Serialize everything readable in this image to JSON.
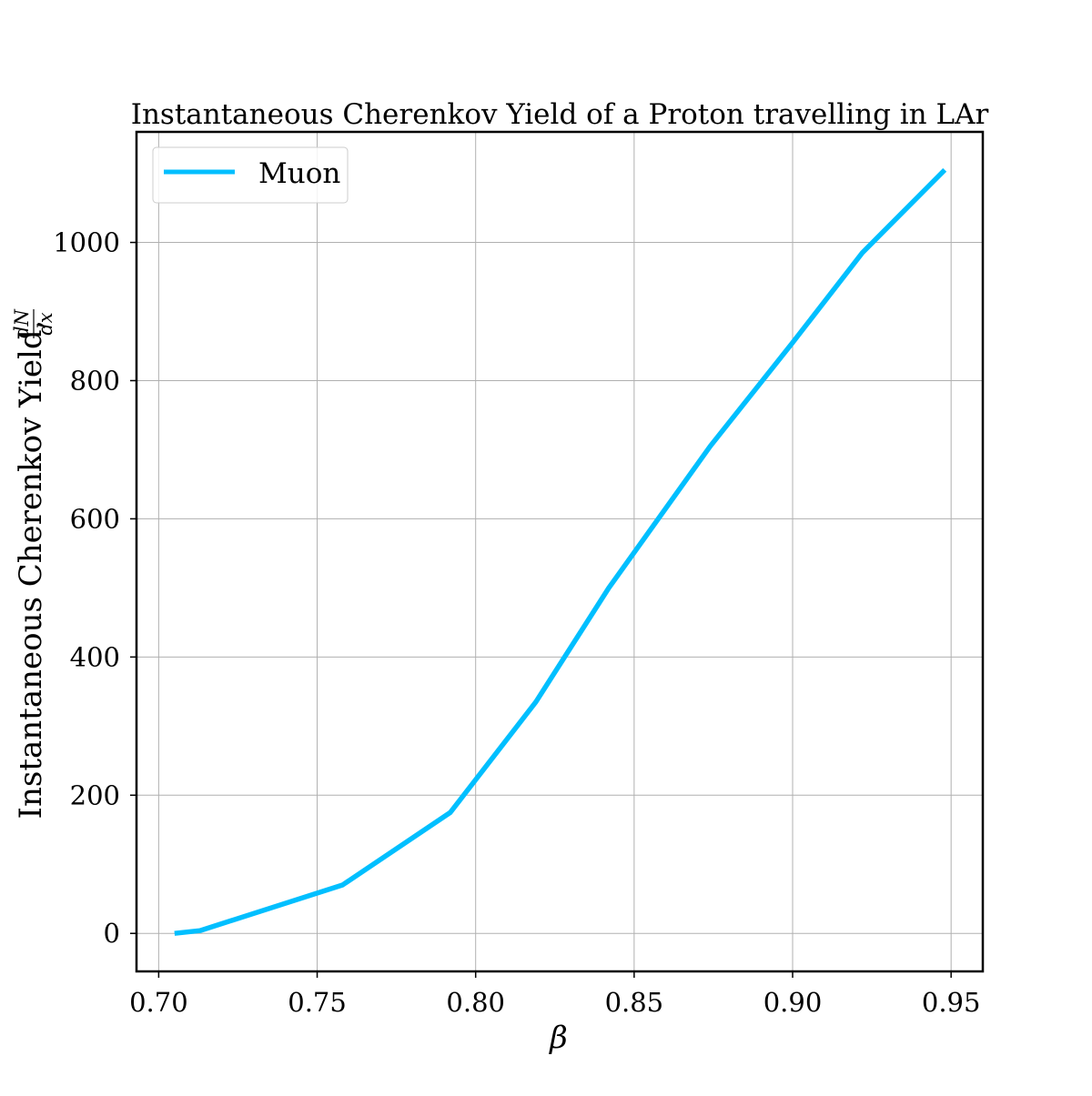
{
  "chart_data": {
    "type": "line",
    "title": "Instantaneous Cherenkov Yield of a Proton travelling in LAr",
    "xlabel": "β",
    "ylabel": "Instantaneous Cherenkov Yield,",
    "ylabel_fraction": {
      "numerator": "dN",
      "denominator": "dx"
    },
    "xlim": [
      0.693,
      0.96
    ],
    "ylim": [
      -55,
      1160
    ],
    "xticks": [
      0.7,
      0.75,
      0.8,
      0.85,
      0.9,
      0.95
    ],
    "xtick_labels": [
      "0.70",
      "0.75",
      "0.80",
      "0.85",
      "0.90",
      "0.95"
    ],
    "yticks": [
      0,
      200,
      400,
      600,
      800,
      1000
    ],
    "ytick_labels": [
      "0",
      "200",
      "400",
      "600",
      "800",
      "1000"
    ],
    "grid": true,
    "legend_position": "top-left",
    "series": [
      {
        "name": "Muon",
        "color": "#00bfff",
        "x": [
          0.705,
          0.713,
          0.758,
          0.792,
          0.819,
          0.842,
          0.874,
          0.9,
          0.922,
          0.948
        ],
        "y": [
          0,
          4,
          70,
          175,
          335,
          500,
          705,
          855,
          985,
          1105
        ]
      }
    ]
  }
}
